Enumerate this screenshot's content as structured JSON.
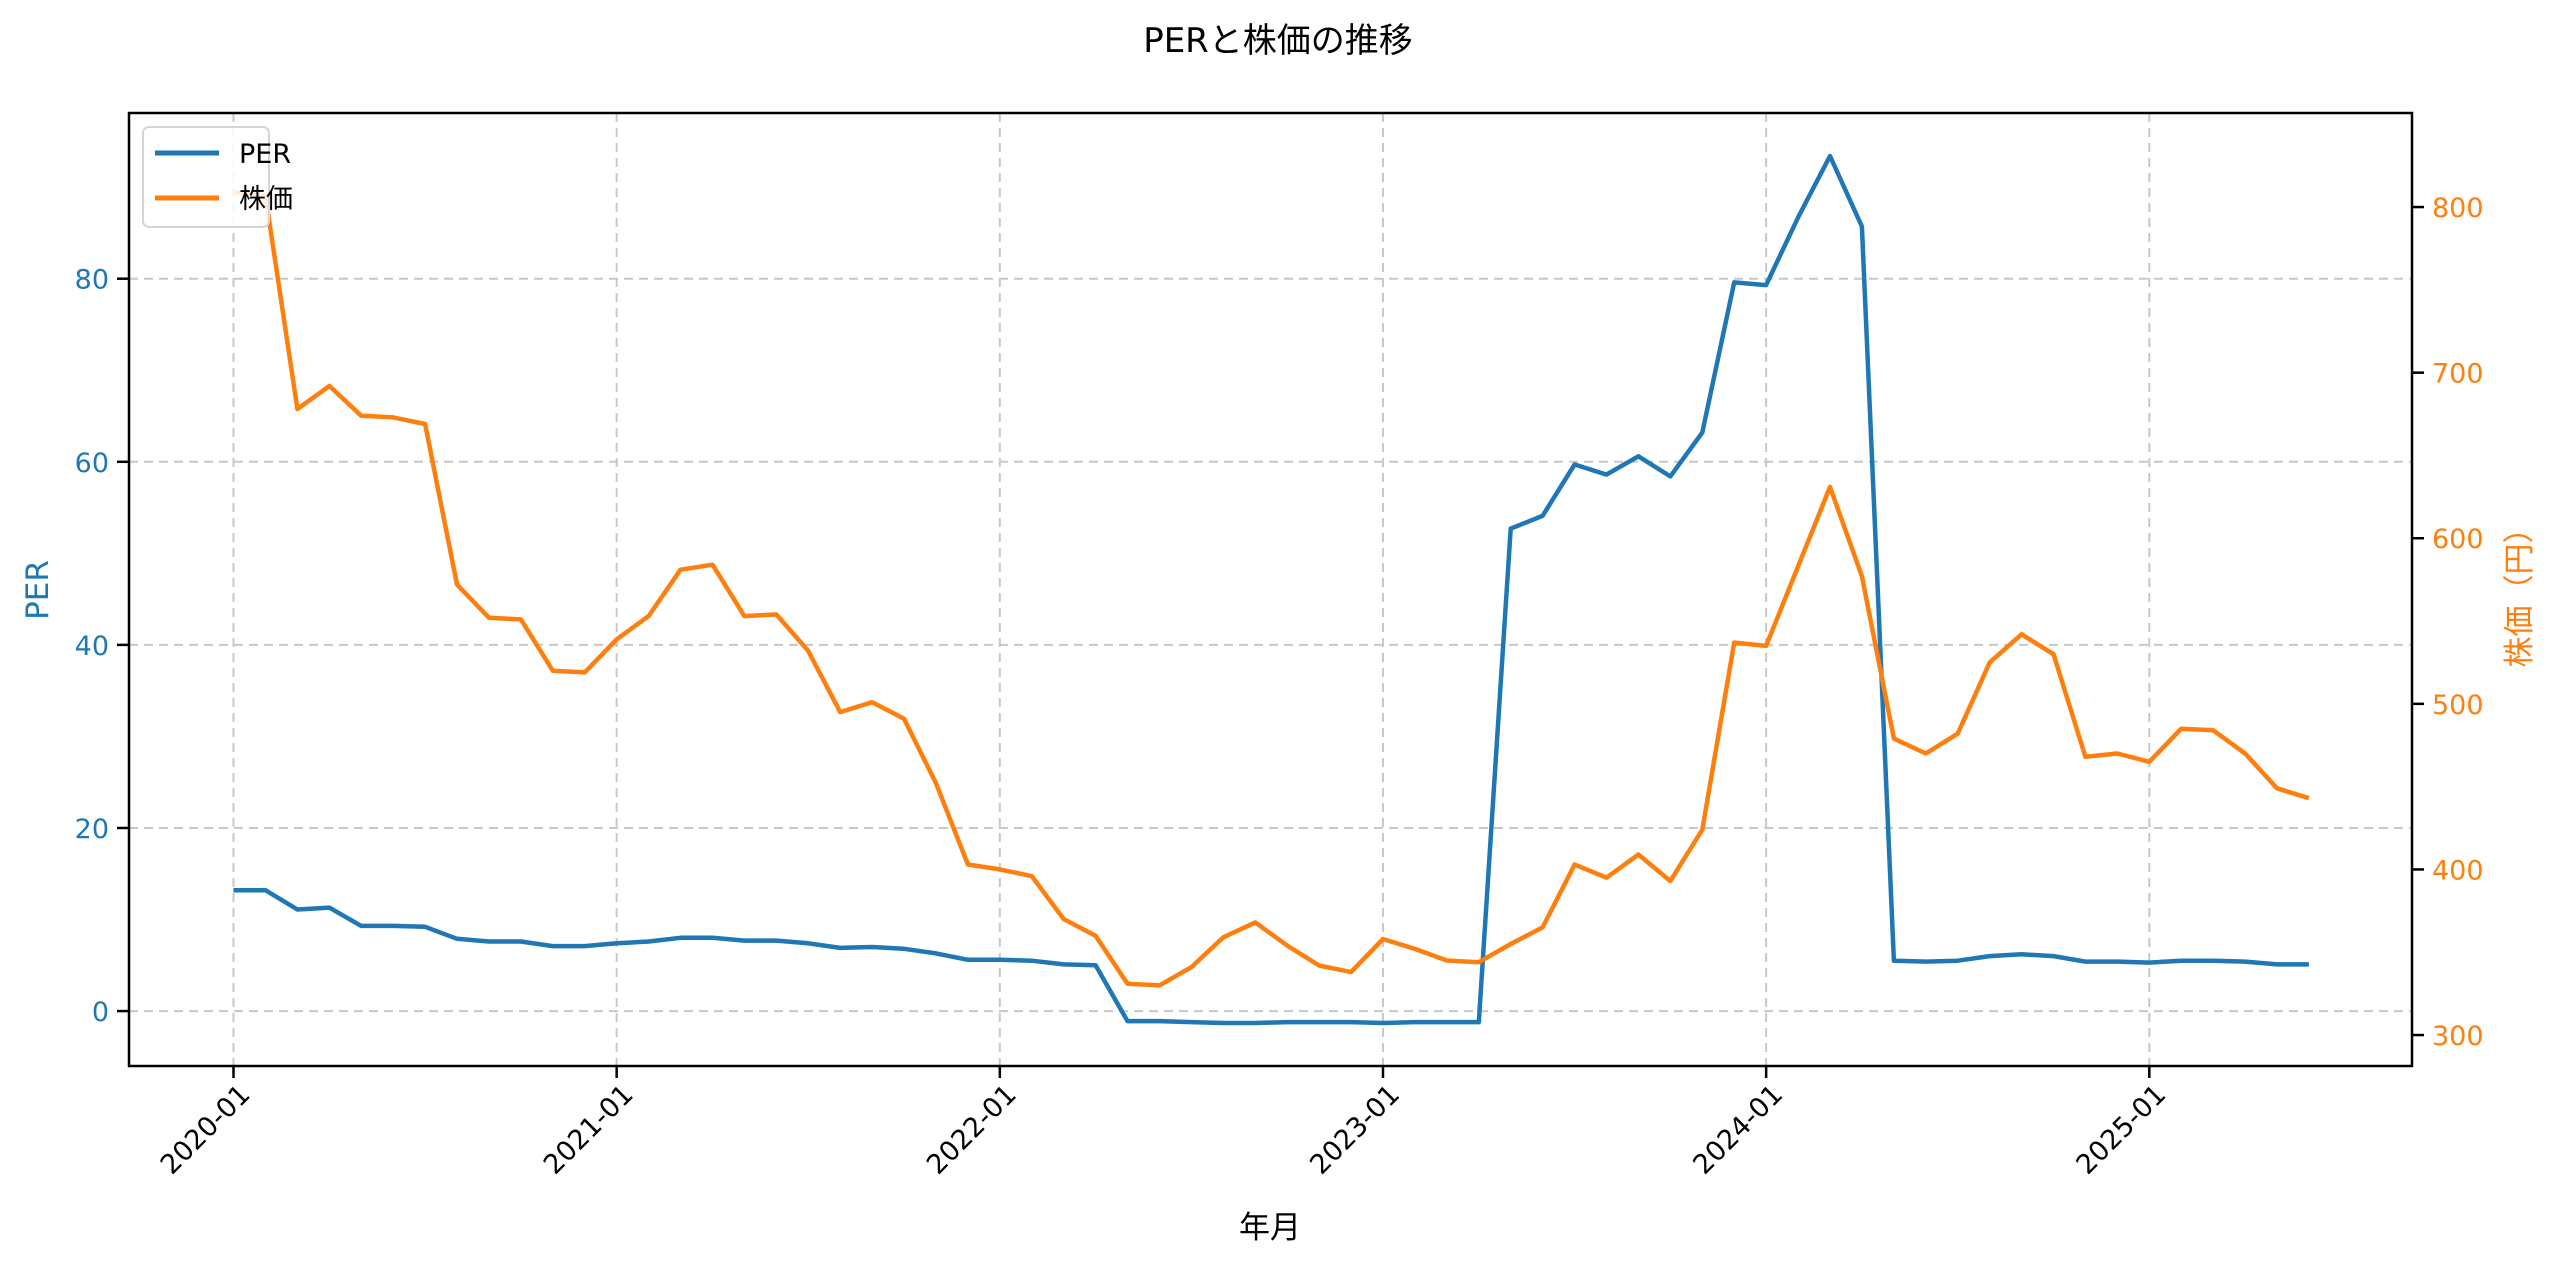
{
  "chart_data": {
    "type": "line",
    "title": "PERと株価の推移",
    "xlabel": "年月",
    "ylabel": "PER",
    "ylabel_right": "株価（円）",
    "x_tick_labels": [
      "2020-01",
      "2021-01",
      "2022-01",
      "2023-01",
      "2024-01",
      "2025-01"
    ],
    "y_ticks_left": [
      0,
      20,
      40,
      60,
      80
    ],
    "y_ticks_right": [
      300,
      400,
      500,
      600,
      700,
      800
    ],
    "ylim_left": [
      -6.0,
      98.1
    ],
    "ylim_right": [
      281.3,
      856.8
    ],
    "grid": true,
    "legend_position": "upper left",
    "x": [
      "2020-01",
      "2020-02",
      "2020-03",
      "2020-04",
      "2020-05",
      "2020-06",
      "2020-07",
      "2020-08",
      "2020-09",
      "2020-10",
      "2020-11",
      "2020-12",
      "2021-01",
      "2021-02",
      "2021-03",
      "2021-04",
      "2021-05",
      "2021-06",
      "2021-07",
      "2021-08",
      "2021-09",
      "2021-10",
      "2021-11",
      "2021-12",
      "2022-01",
      "2022-02",
      "2022-03",
      "2022-04",
      "2022-05",
      "2022-06",
      "2022-07",
      "2022-08",
      "2022-09",
      "2022-10",
      "2022-11",
      "2022-12",
      "2023-01",
      "2023-02",
      "2023-03",
      "2023-04",
      "2023-05",
      "2023-06",
      "2023-07",
      "2023-08",
      "2023-09",
      "2023-10",
      "2023-11",
      "2023-12",
      "2024-01",
      "2024-02",
      "2024-03",
      "2024-04",
      "2024-05",
      "2024-06",
      "2024-07",
      "2024-08",
      "2024-09",
      "2024-10",
      "2024-11",
      "2024-12",
      "2025-01",
      "2025-02",
      "2025-03",
      "2025-04",
      "2025-05",
      "2025-06"
    ],
    "series": [
      {
        "name": "PER",
        "axis": "left",
        "color": "#1f77b4",
        "values": [
          13.2,
          13.2,
          11.1,
          11.3,
          9.3,
          9.3,
          9.2,
          7.9,
          7.6,
          7.6,
          7.1,
          7.1,
          7.4,
          7.6,
          8.0,
          8.0,
          7.7,
          7.7,
          7.4,
          6.9,
          7.0,
          6.8,
          6.3,
          5.6,
          5.6,
          5.5,
          5.1,
          5.0,
          -1.1,
          -1.1,
          -1.2,
          -1.3,
          -1.3,
          -1.2,
          -1.2,
          -1.2,
          -1.3,
          -1.2,
          -1.2,
          -1.2,
          52.7,
          54.1,
          59.7,
          58.6,
          60.6,
          58.4,
          63.2,
          79.6,
          79.3,
          86.7,
          93.4,
          85.7,
          5.5,
          5.4,
          5.5,
          6.0,
          6.2,
          6.0,
          5.4,
          5.4,
          5.3,
          5.5,
          5.5,
          5.4,
          5.1,
          5.1
        ]
      },
      {
        "name": "株価",
        "axis": "right",
        "color": "#ff7f0e",
        "values": [
          809,
          807,
          678,
          692,
          674,
          673,
          669,
          572,
          552,
          551,
          520,
          519,
          539,
          553,
          581,
          584,
          553,
          554,
          532,
          495,
          501,
          491,
          452,
          403,
          400,
          396,
          370,
          360,
          331,
          330,
          341,
          359,
          368,
          354,
          342,
          338,
          358,
          352,
          345,
          344,
          355,
          365,
          403,
          395,
          409,
          393,
          424,
          537,
          535,
          583,
          631,
          577,
          479,
          470,
          482,
          525,
          542,
          530,
          468,
          470,
          465,
          485,
          484,
          470,
          449,
          443
        ]
      }
    ]
  },
  "legend": {
    "items": [
      {
        "label": "PER",
        "color": "#1f77b4"
      },
      {
        "label": "株価",
        "color": "#ff7f0e"
      }
    ]
  },
  "colors": {
    "per": "#1f77b4",
    "price": "#ff7f0e",
    "grid": "#c8c8c8",
    "axis": "#000000"
  }
}
